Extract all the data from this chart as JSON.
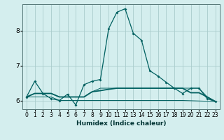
{
  "title": "",
  "xlabel": "Humidex (Indice chaleur)",
  "ylabel": "",
  "background_color": "#d4eeee",
  "grid_color": "#aacccc",
  "line_color": "#006060",
  "xlim": [
    -0.5,
    23.5
  ],
  "ylim": [
    5.75,
    8.75
  ],
  "yticks": [
    6,
    7,
    8
  ],
  "xticks": [
    0,
    1,
    2,
    3,
    4,
    5,
    6,
    7,
    8,
    9,
    10,
    11,
    12,
    13,
    14,
    15,
    16,
    17,
    18,
    19,
    20,
    21,
    22,
    23
  ],
  "series1_x": [
    0,
    1,
    2,
    3,
    4,
    5,
    6,
    7,
    8,
    9,
    10,
    11,
    12,
    13,
    14,
    15,
    16,
    17,
    18,
    19,
    20,
    21,
    22,
    23
  ],
  "series1_y": [
    6.1,
    6.55,
    6.2,
    6.05,
    6.0,
    6.18,
    5.87,
    6.45,
    6.55,
    6.6,
    8.05,
    8.52,
    8.62,
    7.92,
    7.72,
    6.85,
    6.7,
    6.52,
    6.35,
    6.2,
    6.35,
    6.35,
    6.05,
    5.97
  ],
  "series2_x": [
    0,
    1,
    2,
    3,
    4,
    5,
    6,
    7,
    8,
    9,
    10,
    11,
    12,
    13,
    14,
    15,
    16,
    17,
    18,
    19,
    20,
    21,
    22,
    23
  ],
  "series2_y": [
    6.1,
    6.2,
    6.2,
    6.2,
    6.1,
    6.1,
    6.1,
    6.1,
    6.25,
    6.28,
    6.32,
    6.35,
    6.35,
    6.35,
    6.35,
    6.35,
    6.35,
    6.35,
    6.35,
    6.35,
    6.22,
    6.22,
    6.1,
    5.97
  ],
  "series3_x": [
    0,
    1,
    2,
    3,
    4,
    5,
    6,
    7,
    8,
    9,
    14,
    19,
    23
  ],
  "series3_y": [
    6.1,
    6.1,
    6.1,
    6.1,
    6.0,
    6.0,
    6.0,
    6.0,
    6.0,
    6.0,
    6.0,
    6.0,
    5.97
  ],
  "series4_x": [
    0,
    1,
    2,
    3,
    4,
    5,
    6,
    7,
    8,
    9,
    14,
    19,
    20,
    21,
    22,
    23
  ],
  "series4_y": [
    6.1,
    6.2,
    6.2,
    6.2,
    6.1,
    6.1,
    6.1,
    6.1,
    6.25,
    6.35,
    6.35,
    6.35,
    6.35,
    6.35,
    6.1,
    5.97
  ]
}
